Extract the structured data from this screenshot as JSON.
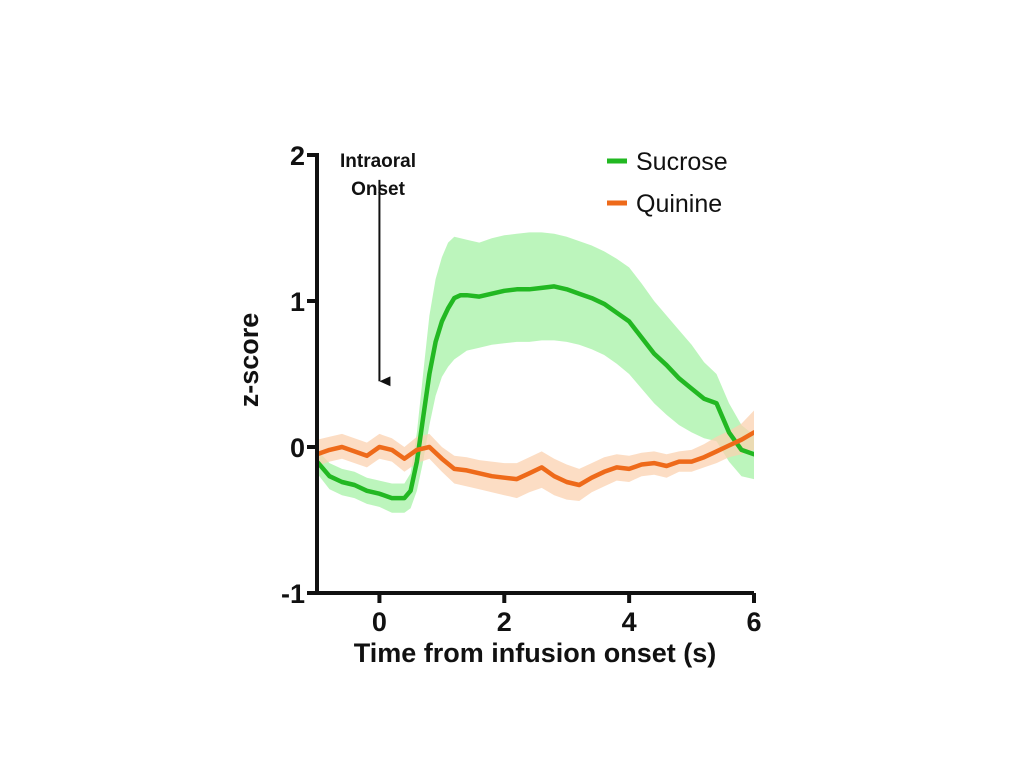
{
  "chart_data": {
    "type": "line",
    "title": "",
    "xlabel": "Time from infusion onset (s)",
    "ylabel": "z-score",
    "xlim": [
      -1,
      6
    ],
    "ylim": [
      -1,
      2
    ],
    "xticks": [
      0,
      2,
      4,
      6
    ],
    "yticks": [
      -1,
      0,
      1,
      2
    ],
    "xtick_labels": [
      "0",
      "2",
      "4",
      "6"
    ],
    "ytick_labels": [
      "-1",
      "0",
      "1",
      "2"
    ],
    "grid": false,
    "legend_position": "top-right",
    "annotation": {
      "lines": [
        "Intraoral",
        "Onset"
      ],
      "x": 0,
      "arrow_from_y": 1.83,
      "arrow_to_y": 0.45
    },
    "series": [
      {
        "name": "Sucrose",
        "color": "#22b822",
        "band_color": "#a6f2a6",
        "x": [
          -1,
          -0.8,
          -0.6,
          -0.4,
          -0.2,
          0,
          0.2,
          0.4,
          0.5,
          0.6,
          0.7,
          0.8,
          0.9,
          1.0,
          1.1,
          1.2,
          1.3,
          1.4,
          1.6,
          1.8,
          2.0,
          2.2,
          2.4,
          2.6,
          2.8,
          3.0,
          3.2,
          3.4,
          3.6,
          3.8,
          4.0,
          4.2,
          4.4,
          4.6,
          4.8,
          5.0,
          5.2,
          5.4,
          5.6,
          5.8,
          6.0
        ],
        "y": [
          -0.1,
          -0.2,
          -0.24,
          -0.26,
          -0.3,
          -0.32,
          -0.35,
          -0.35,
          -0.3,
          -0.1,
          0.2,
          0.5,
          0.72,
          0.86,
          0.95,
          1.02,
          1.04,
          1.04,
          1.03,
          1.05,
          1.07,
          1.08,
          1.08,
          1.09,
          1.1,
          1.08,
          1.05,
          1.02,
          0.98,
          0.92,
          0.86,
          0.75,
          0.64,
          0.56,
          0.47,
          0.4,
          0.33,
          0.3,
          0.1,
          -0.02,
          -0.05
        ],
        "upper": [
          -0.02,
          -0.11,
          -0.15,
          -0.17,
          -0.21,
          -0.23,
          -0.25,
          -0.25,
          -0.18,
          0.1,
          0.5,
          0.9,
          1.15,
          1.3,
          1.4,
          1.44,
          1.43,
          1.42,
          1.4,
          1.43,
          1.45,
          1.46,
          1.47,
          1.47,
          1.46,
          1.44,
          1.41,
          1.38,
          1.34,
          1.29,
          1.23,
          1.12,
          1.0,
          0.9,
          0.8,
          0.7,
          0.58,
          0.5,
          0.3,
          0.15,
          0.08
        ],
        "lower": [
          -0.18,
          -0.29,
          -0.33,
          -0.35,
          -0.39,
          -0.41,
          -0.45,
          -0.45,
          -0.42,
          -0.3,
          -0.1,
          0.15,
          0.35,
          0.48,
          0.55,
          0.6,
          0.63,
          0.66,
          0.68,
          0.7,
          0.71,
          0.72,
          0.72,
          0.73,
          0.73,
          0.72,
          0.7,
          0.67,
          0.63,
          0.57,
          0.5,
          0.4,
          0.3,
          0.22,
          0.15,
          0.1,
          0.06,
          0.04,
          -0.1,
          -0.2,
          -0.22
        ]
      },
      {
        "name": "Quinine",
        "color": "#ee6a1a",
        "band_color": "#fbd1b0",
        "x": [
          -1,
          -0.8,
          -0.6,
          -0.4,
          -0.2,
          0,
          0.2,
          0.4,
          0.6,
          0.8,
          1.0,
          1.2,
          1.4,
          1.6,
          1.8,
          2.0,
          2.2,
          2.4,
          2.6,
          2.8,
          3.0,
          3.2,
          3.4,
          3.6,
          3.8,
          4.0,
          4.2,
          4.4,
          4.6,
          4.8,
          5.0,
          5.2,
          5.4,
          5.6,
          5.8,
          6.0
        ],
        "y": [
          -0.05,
          -0.02,
          0.0,
          -0.03,
          -0.06,
          0.0,
          -0.02,
          -0.08,
          -0.02,
          0.0,
          -0.08,
          -0.15,
          -0.16,
          -0.18,
          -0.2,
          -0.21,
          -0.22,
          -0.18,
          -0.14,
          -0.2,
          -0.24,
          -0.26,
          -0.21,
          -0.17,
          -0.14,
          -0.15,
          -0.12,
          -0.11,
          -0.13,
          -0.1,
          -0.1,
          -0.07,
          -0.03,
          0.01,
          0.05,
          0.1
        ],
        "upper": [
          0.05,
          0.07,
          0.09,
          0.06,
          0.03,
          0.09,
          0.06,
          0.0,
          0.07,
          0.09,
          0.0,
          -0.06,
          -0.07,
          -0.09,
          -0.1,
          -0.11,
          -0.11,
          -0.07,
          -0.03,
          -0.08,
          -0.12,
          -0.15,
          -0.11,
          -0.07,
          -0.05,
          -0.06,
          -0.04,
          -0.03,
          -0.05,
          -0.03,
          -0.02,
          0.02,
          0.07,
          0.11,
          0.16,
          0.25
        ],
        "lower": [
          -0.13,
          -0.1,
          -0.08,
          -0.11,
          -0.14,
          -0.08,
          -0.1,
          -0.17,
          -0.11,
          -0.08,
          -0.17,
          -0.25,
          -0.27,
          -0.29,
          -0.31,
          -0.33,
          -0.35,
          -0.31,
          -0.28,
          -0.33,
          -0.36,
          -0.37,
          -0.31,
          -0.27,
          -0.23,
          -0.24,
          -0.2,
          -0.19,
          -0.21,
          -0.17,
          -0.17,
          -0.14,
          -0.11,
          -0.07,
          -0.05,
          -0.02
        ]
      }
    ]
  }
}
